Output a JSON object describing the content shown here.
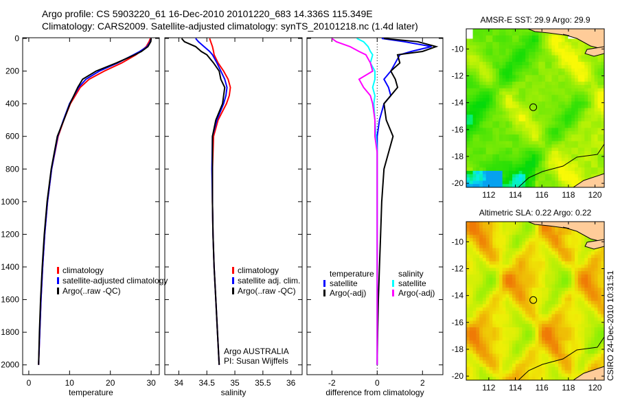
{
  "title_line1": "Argo profile: CS 5903220_61 16-Dec-2010 20101220_683 14.336S 115.349E",
  "title_line2": "Climatology: CARS2009. Satellite-adjusted climatology: synTS_20101218.nc (1.4d later)",
  "stamp": "CSIRO 24-Dec-2010 10:31:51",
  "colors": {
    "climatology": "#ff0000",
    "satellite": "#0000ff",
    "argo": "#000000",
    "sal_sat": "#00ffff",
    "sal_argo": "#ff00ff"
  },
  "chart_data": [
    {
      "type": "line",
      "id": "temperature",
      "xlabel": "temperature",
      "ylabel": "",
      "xlim": [
        -1.5,
        32
      ],
      "ylim": [
        2060,
        0
      ],
      "xticks": [
        "0",
        "10",
        "20",
        "30"
      ],
      "yticks": [
        "0",
        "200",
        "400",
        "600",
        "800",
        "1000",
        "1200",
        "1400",
        "1600",
        "1800",
        "2000"
      ],
      "depth": [
        0,
        20,
        50,
        80,
        100,
        150,
        200,
        250,
        300,
        400,
        500,
        600,
        800,
        1000,
        1200,
        1400,
        1600,
        1800,
        2000
      ],
      "series": [
        {
          "name": "climatology",
          "color": "#ff0000",
          "values": [
            29.8,
            29.5,
            28.8,
            27.4,
            26.3,
            22.8,
            18.5,
            14.8,
            12.6,
            10.2,
            8.6,
            7.2,
            5.6,
            4.6,
            3.9,
            3.4,
            3.0,
            2.7,
            2.4
          ]
        },
        {
          "name": "satellite-adjusted climatology",
          "color": "#0000ff",
          "values": [
            30.0,
            29.8,
            29.0,
            27.2,
            25.7,
            21.8,
            17.3,
            14.0,
            12.2,
            10.0,
            8.5,
            7.1,
            5.6,
            4.6,
            3.9,
            3.4,
            3.0,
            2.7,
            2.4
          ]
        },
        {
          "name": "Argo(..raw -QC)",
          "color": "#000000",
          "values": [
            30.0,
            29.9,
            29.2,
            27.6,
            26.0,
            21.5,
            16.5,
            13.2,
            12.0,
            10.1,
            8.6,
            7.0,
            5.5,
            4.5,
            3.8,
            3.3,
            2.9,
            2.6,
            2.4
          ]
        }
      ],
      "legend": [
        "climatology",
        "satellite-adjusted climatology",
        "Argo(..raw -QC)"
      ]
    },
    {
      "type": "line",
      "id": "salinity",
      "xlabel": "salinity",
      "xlim": [
        33.75,
        36.2
      ],
      "ylim": [
        2060,
        0
      ],
      "xticks": [
        "34",
        "34.5",
        "35",
        "35.5",
        "36"
      ],
      "depth": [
        0,
        20,
        50,
        80,
        100,
        150,
        200,
        250,
        300,
        350,
        400,
        500,
        600,
        800,
        1000,
        1200,
        1400,
        1600,
        1800,
        2000
      ],
      "series": [
        {
          "name": "climatology",
          "color": "#ff0000",
          "values": [
            34.55,
            34.57,
            34.6,
            34.62,
            34.63,
            34.7,
            34.8,
            34.88,
            34.92,
            34.9,
            34.85,
            34.7,
            34.62,
            34.6,
            34.6,
            34.61,
            34.63,
            34.66,
            34.69,
            34.72
          ]
        },
        {
          "name": "satellite adj. clim.",
          "color": "#0000ff",
          "values": [
            34.3,
            34.35,
            34.45,
            34.55,
            34.6,
            34.68,
            34.75,
            34.82,
            34.86,
            34.84,
            34.8,
            34.68,
            34.6,
            34.59,
            34.6,
            34.61,
            34.63,
            34.66,
            34.69,
            34.72
          ]
        },
        {
          "name": "Argo(..raw -QC)",
          "color": "#000000",
          "values": [
            34.05,
            34.1,
            34.3,
            34.4,
            34.5,
            34.62,
            34.72,
            34.75,
            34.82,
            34.8,
            34.78,
            34.66,
            34.6,
            34.6,
            34.6,
            34.61,
            34.63,
            34.66,
            34.69,
            34.72
          ]
        }
      ],
      "legend": [
        "climatology",
        "satellite adj. clim.",
        "Argo(..raw -QC)"
      ],
      "annotation": [
        "Argo AUSTRALIA",
        "PI: Susan Wijffels"
      ]
    },
    {
      "type": "line",
      "id": "difference",
      "xlabel": "difference from climatology",
      "xlim": [
        -3.1,
        2.9
      ],
      "ylim": [
        2060,
        0
      ],
      "xticks": [
        "-2",
        "0",
        "2"
      ],
      "depth": [
        0,
        20,
        50,
        80,
        100,
        150,
        200,
        250,
        300,
        350,
        400,
        500,
        600,
        700,
        800,
        1000,
        1200,
        1400,
        1600,
        1800,
        2000
      ],
      "series": [
        {
          "name": "temperature satellite",
          "color": "#0000ff",
          "values": [
            0.2,
            1.2,
            2.4,
            1.5,
            1.0,
            0.8,
            0.6,
            0.3,
            0.5,
            0.6,
            0.3,
            0.1,
            0.0,
            0.0,
            0.0,
            0.0,
            0.0,
            0.0,
            0.0,
            0.0,
            0.0
          ]
        },
        {
          "name": "temperature Argo(-adj)",
          "color": "#000000",
          "values": [
            0.3,
            1.8,
            2.6,
            2.0,
            0.9,
            1.0,
            0.6,
            0.8,
            0.9,
            0.6,
            0.3,
            0.4,
            0.7,
            0.5,
            0.3,
            0.2,
            0.15,
            0.1,
            0.05,
            0.02,
            0.0
          ]
        },
        {
          "name": "salinity satellite",
          "color": "#00ffff",
          "values": [
            -0.9,
            -0.6,
            -0.4,
            -0.3,
            -0.2,
            -0.3,
            -0.1,
            -0.1,
            -0.2,
            -0.1,
            -0.15,
            -0.1,
            -0.05,
            0.0,
            0.0,
            0.0,
            0.0,
            0.0,
            0.0,
            0.0,
            0.0
          ]
        },
        {
          "name": "salinity Argo(-adj)",
          "color": "#ff00ff",
          "values": [
            -2.0,
            -1.8,
            -1.2,
            -0.8,
            -0.5,
            -0.3,
            -0.2,
            -0.8,
            -0.6,
            -0.3,
            -0.2,
            -0.1,
            -0.1,
            0.0,
            0.0,
            0.0,
            0.0,
            0.0,
            0.0,
            0.0,
            0.0
          ]
        }
      ],
      "legend_temp_heading": "temperature",
      "legend_sal_heading": "salinity",
      "legend_labels": [
        "satellite",
        "Argo(-adj)",
        "satellite",
        "Argo(-adj)"
      ]
    },
    {
      "type": "heatmap",
      "id": "sst_map",
      "title": "AMSR-E SST: 29.9 Argo: 29.9",
      "xlim": [
        110.3,
        120.7
      ],
      "ylim": [
        -20.3,
        -8.5
      ],
      "xticks": [
        "112",
        "114",
        "116",
        "118",
        "120"
      ],
      "yticks": [
        "-10",
        "-12",
        "-14",
        "-16",
        "-18",
        "-20"
      ],
      "marker": {
        "lon": 115.349,
        "lat": -14.336
      }
    },
    {
      "type": "heatmap",
      "id": "sla_map",
      "title": "Altimetric SLA: 0.22 Argo: 0.22",
      "xlim": [
        110.3,
        120.7
      ],
      "ylim": [
        -20.3,
        -8.5
      ],
      "xticks": [
        "112",
        "114",
        "116",
        "118",
        "120"
      ],
      "yticks": [
        "-10",
        "-12",
        "-14",
        "-16",
        "-18",
        "-20"
      ],
      "marker": {
        "lon": 115.349,
        "lat": -14.336
      }
    }
  ]
}
